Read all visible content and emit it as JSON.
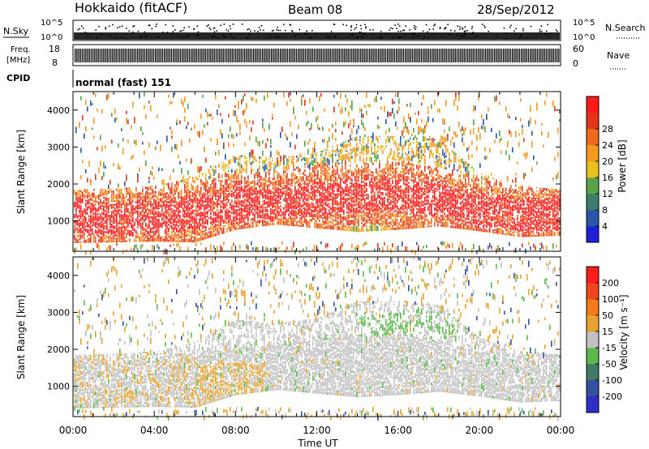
{
  "header": {
    "station": "Hokkaido (fitACF)",
    "beam": "Beam 08",
    "date": "28/Sep/2012"
  },
  "panels": {
    "nsky": {
      "label": "N.Sky",
      "ticks": [
        "10^5",
        "10^0"
      ],
      "right_ticks": [
        "10^5",
        "10^0"
      ],
      "right_label": "N.Search"
    },
    "freq": {
      "label_line1": "Freq.",
      "label_line2": "[MHz]",
      "ticks": [
        "18",
        "8"
      ],
      "right_ticks": [
        "60",
        "0"
      ],
      "right_label": "Nave"
    },
    "cpid": {
      "label": "CPID",
      "value": "normal (fast) 151"
    }
  },
  "chart_data": [
    {
      "type": "heatmap",
      "name": "power",
      "xlabel": "Time UT",
      "ylabel": "Slant Range [km]",
      "x_ticks": [
        "00:00",
        "04:00",
        "08:00",
        "12:00",
        "16:00",
        "20:00",
        "00:00"
      ],
      "xlim_hours": [
        0,
        24
      ],
      "y_ticks": [
        1000,
        2000,
        3000,
        4000
      ],
      "ylim": [
        180,
        4500
      ],
      "colorbar": {
        "label": "Power [dB]",
        "ticks": [
          4,
          8,
          12,
          16,
          20,
          24,
          28
        ],
        "range": [
          0,
          32
        ],
        "colors": [
          "#1f1fd6",
          "#2b55a6",
          "#3a7f6b",
          "#58a24a",
          "#e8c11b",
          "#f59a1f",
          "#f06a1d",
          "#e2351b",
          "#ff1a1a"
        ]
      },
      "region_shape": {
        "x_hours": [
          0,
          2,
          4,
          6,
          8,
          10,
          12,
          14,
          16,
          18,
          20,
          22,
          24
        ],
        "lower_km": [
          400,
          420,
          440,
          420,
          760,
          900,
          800,
          700,
          760,
          850,
          720,
          560,
          600
        ],
        "upper_km": [
          1850,
          1880,
          1950,
          2200,
          2800,
          2700,
          2850,
          3300,
          3300,
          3200,
          2300,
          1950,
          1850
        ],
        "core_km": [
          1050,
          1000,
          1050,
          1150,
          1350,
          1400,
          1550,
          1650,
          1650,
          1500,
          1200,
          1100,
          1100
        ]
      }
    },
    {
      "type": "heatmap",
      "name": "velocity",
      "xlabel": "Time UT",
      "ylabel": "Slant Range [km]",
      "x_ticks": [
        "00:00",
        "04:00",
        "08:00",
        "12:00",
        "16:00",
        "20:00",
        "00:00"
      ],
      "xlim_hours": [
        0,
        24
      ],
      "y_ticks": [
        1000,
        2000,
        3000,
        4000
      ],
      "ylim": [
        180,
        4500
      ],
      "colorbar": {
        "label": "Velocity [m s⁻¹]",
        "ticks": [
          "200",
          "100",
          "50",
          "15",
          "-15",
          "-50",
          "-100",
          "-200"
        ],
        "colors": [
          "#2f2fc8",
          "#3450a0",
          "#3f7a66",
          "#5ab84c",
          "#c2c2c2",
          "#e8a22e",
          "#f27a1d",
          "#f0461b",
          "#ff1c1c"
        ]
      },
      "region_shape": {
        "x_hours": [
          0,
          2,
          4,
          6,
          8,
          10,
          12,
          14,
          16,
          18,
          20,
          22,
          24
        ],
        "lower_km": [
          400,
          420,
          440,
          420,
          760,
          900,
          800,
          700,
          760,
          850,
          720,
          560,
          600
        ],
        "upper_km": [
          1850,
          1880,
          1950,
          2200,
          2800,
          2700,
          2850,
          3300,
          3300,
          3200,
          2300,
          1950,
          1850
        ]
      }
    }
  ]
}
